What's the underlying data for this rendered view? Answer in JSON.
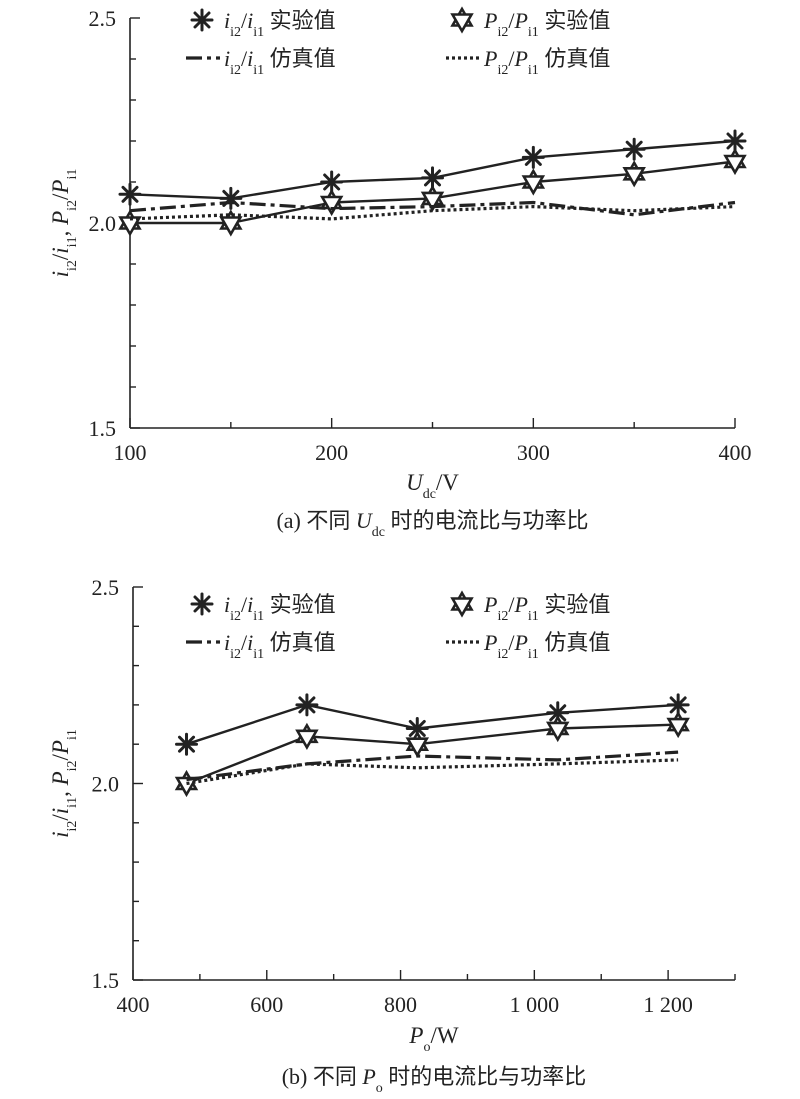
{
  "chart_data": [
    {
      "type": "line",
      "caption": "(a) 不同 Udc 时的电流比与功率比",
      "xlabel": "Udc/V",
      "ylabel": "ii2/ii1, Pi2/Pi1",
      "xlim": [
        100,
        400
      ],
      "ylim": [
        1.5,
        2.5
      ],
      "xticks": [
        "100",
        "200",
        "300",
        "400"
      ],
      "yticks": [
        "1.5",
        "2.0",
        "2.5"
      ],
      "legend_position": "top",
      "series": [
        {
          "name": "ii2/ii1 实验值",
          "style": "solid-asterisk",
          "x": [
            100,
            150,
            200,
            250,
            300,
            350,
            400
          ],
          "y": [
            2.07,
            2.06,
            2.1,
            2.11,
            2.16,
            2.18,
            2.2
          ]
        },
        {
          "name": "Pi2/Pi1 实验值",
          "style": "solid-star",
          "x": [
            100,
            150,
            200,
            250,
            300,
            350,
            400
          ],
          "y": [
            2.0,
            2.0,
            2.05,
            2.06,
            2.1,
            2.12,
            2.15
          ]
        },
        {
          "name": "ii2/ii1 仿真值",
          "style": "dashdot",
          "x": [
            100,
            150,
            200,
            250,
            300,
            350,
            400
          ],
          "y": [
            2.03,
            2.05,
            2.035,
            2.04,
            2.05,
            2.02,
            2.05
          ]
        },
        {
          "name": "Pi2/Pi1 仿真值",
          "style": "dotted",
          "x": [
            100,
            150,
            200,
            250,
            300,
            350,
            400
          ],
          "y": [
            2.01,
            2.02,
            2.01,
            2.03,
            2.04,
            2.03,
            2.04
          ]
        }
      ]
    },
    {
      "type": "line",
      "caption": "(b) 不同 Po 时的电流比与功率比",
      "xlabel": "Po/W",
      "ylabel": "ii2/ii1, Pi2/Pi1",
      "xlim": [
        400,
        1300
      ],
      "ylim": [
        1.5,
        2.5
      ],
      "xticks": [
        "400",
        "600",
        "800",
        "1 000",
        "1 200"
      ],
      "yticks": [
        "1.5",
        "2.0",
        "2.5"
      ],
      "legend_position": "top",
      "series": [
        {
          "name": "ii2/ii1 实验值",
          "style": "solid-asterisk",
          "x": [
            480,
            660,
            825,
            1035,
            1215
          ],
          "y": [
            2.1,
            2.2,
            2.14,
            2.18,
            2.2
          ]
        },
        {
          "name": "Pi2/Pi1 实验值",
          "style": "solid-star",
          "x": [
            480,
            660,
            825,
            1035,
            1215
          ],
          "y": [
            2.0,
            2.12,
            2.1,
            2.14,
            2.15
          ]
        },
        {
          "name": "ii2/ii1 仿真值",
          "style": "dashdot",
          "x": [
            480,
            660,
            825,
            1035,
            1215
          ],
          "y": [
            2.01,
            2.05,
            2.07,
            2.06,
            2.08
          ]
        },
        {
          "name": "Pi2/Pi1 仿真值",
          "style": "dotted",
          "x": [
            480,
            660,
            825,
            1035,
            1215
          ],
          "y": [
            2.0,
            2.05,
            2.04,
            2.05,
            2.06
          ]
        }
      ]
    }
  ]
}
